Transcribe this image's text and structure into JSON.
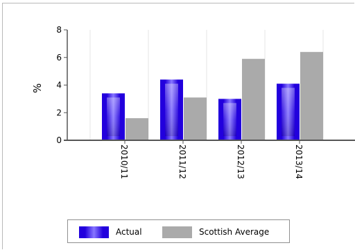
{
  "colors": {
    "actual": "#2200dd",
    "actual_highlight": "#8877ff",
    "scottish_average": "#aaaaaa",
    "axis": "#555555",
    "grid": "#e6e6e6"
  },
  "chart_data": {
    "type": "bar",
    "categories": [
      "2010/11",
      "2011/12",
      "2012/13",
      "2013/14"
    ],
    "series": [
      {
        "name": "Actual",
        "values": [
          3.4,
          4.4,
          3.0,
          4.1
        ]
      },
      {
        "name": "Scottish Average",
        "values": [
          1.6,
          3.1,
          5.9,
          6.4
        ]
      }
    ],
    "title": "",
    "xlabel": "",
    "ylabel": "%",
    "ylim": [
      0,
      8
    ],
    "yticks": [
      "0",
      "2",
      "4",
      "6",
      "8"
    ],
    "grid": "vertical gridlines at category boundaries",
    "legend": "bottom"
  },
  "legend": {
    "items": [
      {
        "label": "Actual",
        "color_key": "actual"
      },
      {
        "label": "Scottish Average",
        "color_key": "scottish_average"
      }
    ]
  }
}
